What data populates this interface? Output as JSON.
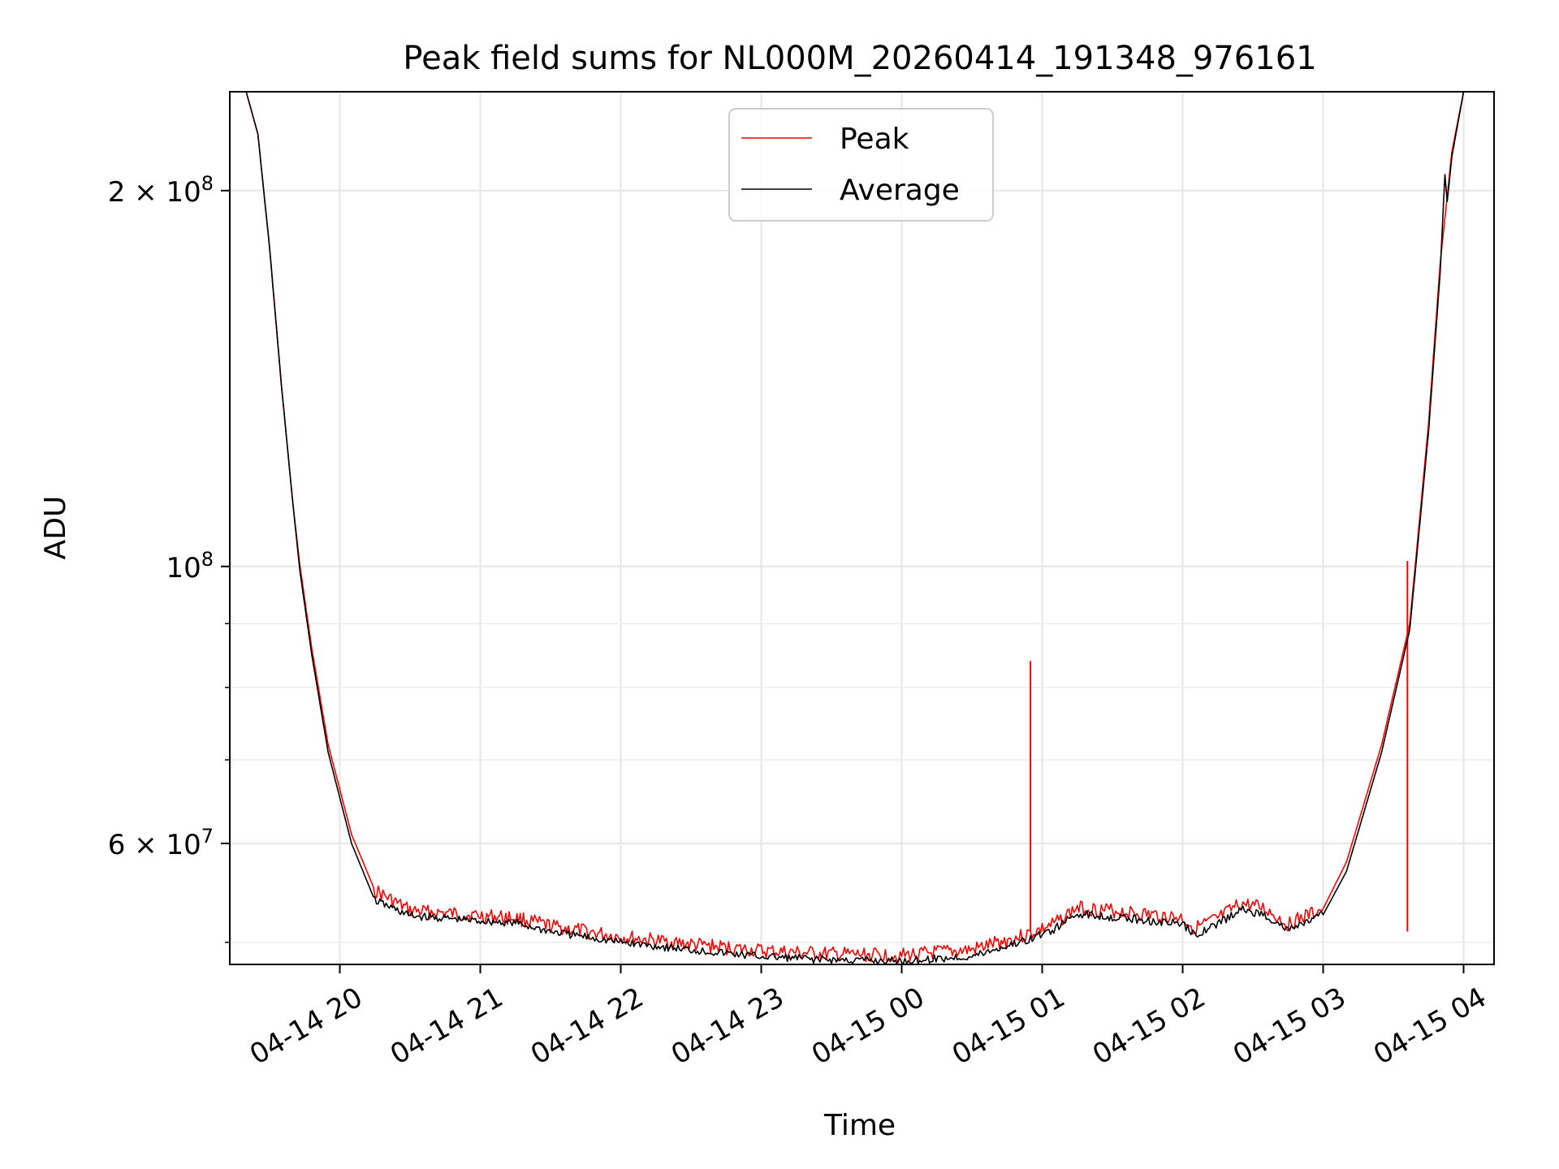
{
  "chart_data": {
    "type": "line",
    "title": "Peak field sums for NL000M_20260414_191348_976161",
    "xlabel": "Time",
    "ylabel": "ADU",
    "yscale": "log",
    "grid": true,
    "legend_placement": "upper-center",
    "xlim": [
      "2026-04-14 19:13",
      "2026-04-15 04:13"
    ],
    "ylim": [
      48000000,
      240000000
    ],
    "x_ticks": [
      {
        "value": "2026-04-14 20:00",
        "label": "04-14 20"
      },
      {
        "value": "2026-04-14 21:00",
        "label": "04-14 21"
      },
      {
        "value": "2026-04-14 22:00",
        "label": "04-14 22"
      },
      {
        "value": "2026-04-14 23:00",
        "label": "04-14 23"
      },
      {
        "value": "2026-04-15 00:00",
        "label": "04-15 00"
      },
      {
        "value": "2026-04-15 01:00",
        "label": "04-15 01"
      },
      {
        "value": "2026-04-15 02:00",
        "label": "04-15 02"
      },
      {
        "value": "2026-04-15 03:00",
        "label": "04-15 03"
      },
      {
        "value": "2026-04-15 04:00",
        "label": "04-15 04"
      }
    ],
    "y_major_ticks": [
      {
        "value": 60000000,
        "mantissa": "6",
        "exponent": "7"
      },
      {
        "value": 100000000,
        "mantissa": "",
        "exponent": "8"
      },
      {
        "value": 200000000,
        "mantissa": "2",
        "exponent": "8"
      }
    ],
    "y_minor_ticks": [
      50000000,
      70000000,
      80000000,
      90000000
    ],
    "series": [
      {
        "name": "Peak",
        "color": "#ff0000",
        "points": [
          [
            "2026-04-14 19:13",
            240000000
          ],
          [
            "2026-04-14 19:20",
            240000000
          ],
          [
            "2026-04-14 19:25",
            222000000
          ],
          [
            "2026-04-14 19:30",
            180000000
          ],
          [
            "2026-04-14 19:35",
            140000000
          ],
          [
            "2026-04-14 19:40",
            112000000
          ],
          [
            "2026-04-14 19:43",
            100000000
          ],
          [
            "2026-04-14 19:48",
            86000000
          ],
          [
            "2026-04-14 19:55",
            72000000
          ],
          [
            "2026-04-14 20:05",
            61000000
          ],
          [
            "2026-04-14 20:15",
            55000000
          ],
          [
            "2026-04-14 20:30",
            53000000
          ],
          [
            "2026-04-14 21:00",
            52500000
          ],
          [
            "2026-04-14 21:15",
            52300000
          ],
          [
            "2026-04-14 21:30",
            51500000
          ],
          [
            "2026-04-14 22:00",
            50500000
          ],
          [
            "2026-04-14 22:30",
            49800000
          ],
          [
            "2026-04-14 23:00",
            49200000
          ],
          [
            "2026-04-14 23:30",
            48900000
          ],
          [
            "2026-04-15 00:00",
            48800000
          ],
          [
            "2026-04-15 00:30",
            49300000
          ],
          [
            "2026-04-15 00:55",
            50800000
          ],
          [
            "2026-04-15 01:05",
            51700000
          ],
          [
            "2026-04-15 01:15",
            53300000
          ],
          [
            "2026-04-15 01:30",
            53000000
          ],
          [
            "2026-04-15 02:00",
            52300000
          ],
          [
            "2026-04-15 02:05",
            51300000
          ],
          [
            "2026-04-15 02:15",
            52200000
          ],
          [
            "2026-04-15 02:25",
            53700000
          ],
          [
            "2026-04-15 02:35",
            53200000
          ],
          [
            "2026-04-15 02:45",
            51700000
          ],
          [
            "2026-04-15 03:00",
            53200000
          ],
          [
            "2026-04-15 03:10",
            58000000
          ],
          [
            "2026-04-15 03:25",
            72000000
          ],
          [
            "2026-04-15 03:37",
            90000000
          ],
          [
            "2026-04-15 03:45",
            130000000
          ],
          [
            "2026-04-15 03:50",
            175000000
          ],
          [
            "2026-04-15 03:55",
            215000000
          ],
          [
            "2026-04-15 04:00",
            240000000
          ],
          [
            "2026-04-15 04:13",
            240000000
          ]
        ],
        "spikes": [
          {
            "x": "2026-04-15 00:55",
            "y": 84000000
          },
          {
            "x": "2026-04-15 03:36",
            "y": 101000000
          }
        ]
      },
      {
        "name": "Average",
        "color": "#000000",
        "points": [
          [
            "2026-04-14 19:13",
            240000000
          ],
          [
            "2026-04-14 19:20",
            240000000
          ],
          [
            "2026-04-14 19:25",
            222000000
          ],
          [
            "2026-04-14 19:30",
            180000000
          ],
          [
            "2026-04-14 19:35",
            140000000
          ],
          [
            "2026-04-14 19:40",
            112000000
          ],
          [
            "2026-04-14 19:43",
            99000000
          ],
          [
            "2026-04-14 19:48",
            85000000
          ],
          [
            "2026-04-14 19:55",
            71000000
          ],
          [
            "2026-04-14 20:05",
            60000000
          ],
          [
            "2026-04-14 20:15",
            54000000
          ],
          [
            "2026-04-14 20:30",
            52500000
          ],
          [
            "2026-04-14 21:00",
            52000000
          ],
          [
            "2026-04-14 21:15",
            51800000
          ],
          [
            "2026-04-14 21:30",
            51000000
          ],
          [
            "2026-04-14 22:00",
            50000000
          ],
          [
            "2026-04-14 22:30",
            49300000
          ],
          [
            "2026-04-14 23:00",
            48700000
          ],
          [
            "2026-04-14 23:30",
            48400000
          ],
          [
            "2026-04-15 00:00",
            48300000
          ],
          [
            "2026-04-15 00:30",
            48700000
          ],
          [
            "2026-04-15 00:55",
            50300000
          ],
          [
            "2026-04-15 01:05",
            51200000
          ],
          [
            "2026-04-15 01:15",
            52700000
          ],
          [
            "2026-04-15 01:30",
            52400000
          ],
          [
            "2026-04-15 02:00",
            51700000
          ],
          [
            "2026-04-15 02:05",
            50700000
          ],
          [
            "2026-04-15 02:15",
            51700000
          ],
          [
            "2026-04-15 02:25",
            53100000
          ],
          [
            "2026-04-15 02:35",
            52600000
          ],
          [
            "2026-04-15 02:45",
            51100000
          ],
          [
            "2026-04-15 03:00",
            52600000
          ],
          [
            "2026-04-15 03:10",
            57000000
          ],
          [
            "2026-04-15 03:25",
            71000000
          ],
          [
            "2026-04-15 03:37",
            89000000
          ],
          [
            "2026-04-15 03:45",
            128000000
          ],
          [
            "2026-04-15 03:50",
            172000000
          ],
          [
            "2026-04-15 03:52",
            206000000
          ],
          [
            "2026-04-15 03:53",
            196000000
          ],
          [
            "2026-04-15 03:55",
            213000000
          ],
          [
            "2026-04-15 04:00",
            240000000
          ],
          [
            "2026-04-15 04:13",
            240000000
          ]
        ]
      }
    ]
  }
}
